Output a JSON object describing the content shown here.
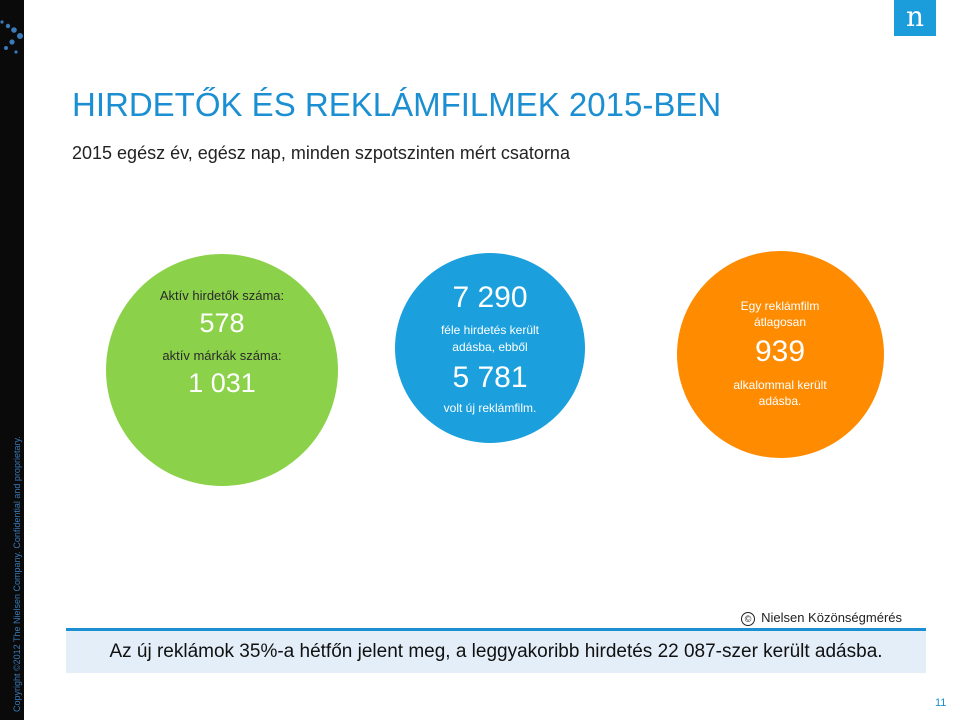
{
  "sidebar": {
    "copyright": "Copyright ©2012 The Nielsen Company. Confidential and proprietary."
  },
  "logo": {
    "letter": "n"
  },
  "header": {
    "title": "HIRDETŐK ÉS REKLÁMFILMEK 2015-BEN",
    "subtitle": "2015 egész év, egész nap, minden szpotszinten mért csatorna"
  },
  "circles": {
    "green": {
      "line1": "Aktív hirdetők száma:",
      "value1": "578",
      "line2": "aktív márkák száma:",
      "value2": "1 031",
      "color": "#8bd24a"
    },
    "blue": {
      "value1": "7 290",
      "line1": "féle hirdetés került",
      "line2": "adásba, ebből",
      "value2": "5 781",
      "line3": "volt új reklámfilm.",
      "color": "#1ba0dd"
    },
    "orange": {
      "line1": "Egy reklámfilm",
      "line2": "átlagosan",
      "value": "939",
      "line3": "alkalommal került",
      "line4": "adásba.",
      "color": "#fe8b00"
    }
  },
  "footer": {
    "copyright_symbol": "©",
    "source": "Nielsen Közönségmérés",
    "highlight": "Az új reklámok 35%-a hétfőn jelent meg, a leggyakoribb hirdetés 22 087-szer került adásba."
  },
  "page_number": "11",
  "colors": {
    "accent": "#1b8fd2",
    "bar_bg": "#e3eef8"
  }
}
